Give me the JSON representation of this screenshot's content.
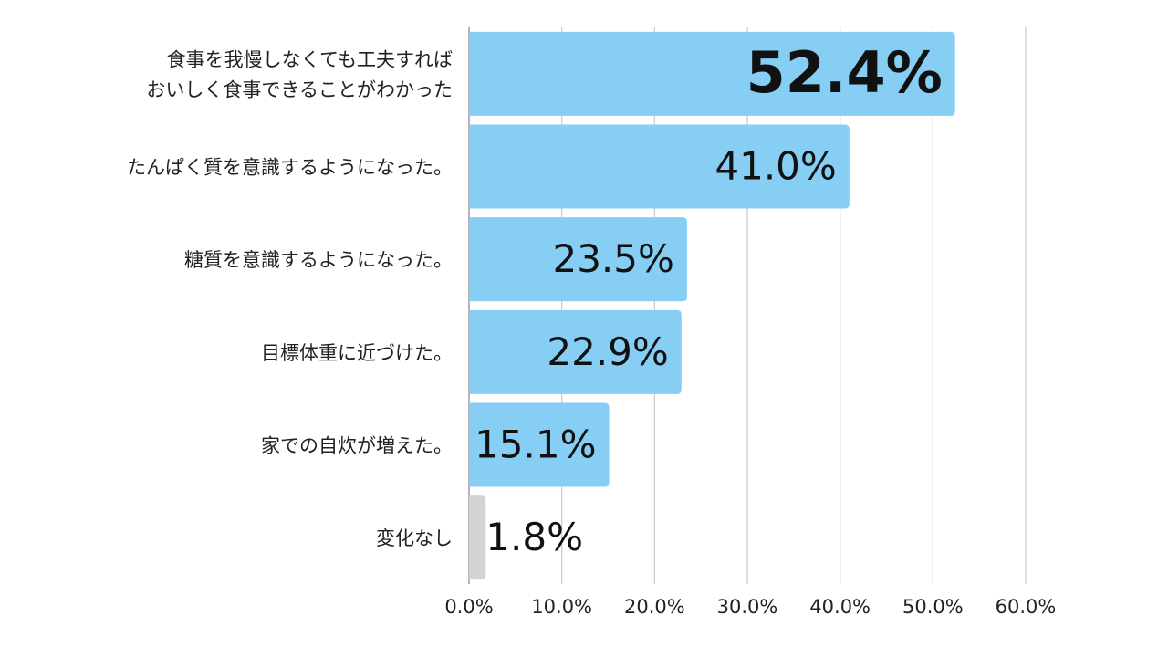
{
  "chart_data": {
    "type": "bar",
    "orientation": "horizontal",
    "categories": [
      [
        "食事を我慢しなくても工夫すれば",
        "おいしく食事できることがわかった"
      ],
      [
        "たんぱく質を意識するようになった。"
      ],
      [
        "糖質を意識するようになった。"
      ],
      [
        "目標体重に近づけた。"
      ],
      [
        "家での自炊が増えた。"
      ],
      [
        "変化なし"
      ]
    ],
    "values": [
      52.4,
      41.0,
      23.5,
      22.9,
      15.1,
      1.8
    ],
    "value_labels": [
      "52.4%",
      "41.0%",
      "23.5%",
      "22.9%",
      "15.1%",
      "1.8%"
    ],
    "bar_colors": [
      "#87cef5",
      "#87cef5",
      "#87cef5",
      "#87cef5",
      "#87cef5",
      "#d3d3d3"
    ],
    "highlight_index": 0,
    "x_ticks": [
      0,
      10,
      20,
      30,
      40,
      50,
      60
    ],
    "x_tick_labels": [
      "0.0%",
      "10.0%",
      "20.0%",
      "30.0%",
      "40.0%",
      "50.0%",
      "60.0%"
    ],
    "xlim": [
      0,
      60
    ],
    "grid": true,
    "gridline_color": "#c8c8c8",
    "title": "",
    "xlabel": "",
    "ylabel": ""
  }
}
